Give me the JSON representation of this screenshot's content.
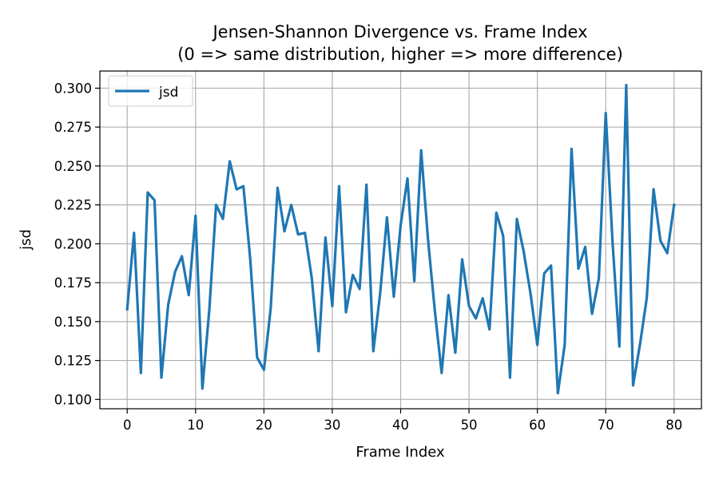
{
  "chart_data": {
    "type": "line",
    "title": "Jensen-Shannon Divergence vs. Frame Index",
    "subtitle": "(0 => same distribution, higher => more difference)",
    "xlabel": "Frame Index",
    "ylabel": "jsd",
    "xlim": [
      -4,
      84
    ],
    "ylim": [
      0.094,
      0.311
    ],
    "xticks": [
      0,
      10,
      20,
      30,
      40,
      50,
      60,
      70,
      80
    ],
    "yticks": [
      0.1,
      0.125,
      0.15,
      0.175,
      0.2,
      0.225,
      0.25,
      0.275,
      0.3
    ],
    "ytick_labels": [
      "0.100",
      "0.125",
      "0.150",
      "0.175",
      "0.200",
      "0.225",
      "0.250",
      "0.275",
      "0.300"
    ],
    "grid": true,
    "legend_position": "top-left",
    "series": [
      {
        "name": "jsd",
        "color": "#1f77b4",
        "x": [
          0,
          1,
          2,
          3,
          4,
          5,
          6,
          7,
          8,
          9,
          10,
          11,
          12,
          13,
          14,
          15,
          16,
          17,
          18,
          19,
          20,
          21,
          22,
          23,
          24,
          25,
          26,
          27,
          28,
          29,
          30,
          31,
          32,
          33,
          34,
          35,
          36,
          37,
          38,
          39,
          40,
          41,
          42,
          43,
          44,
          45,
          46,
          47,
          48,
          49,
          50,
          51,
          52,
          53,
          54,
          55,
          56,
          57,
          58,
          59,
          60,
          61,
          62,
          63,
          64,
          65,
          66,
          67,
          68,
          69,
          70,
          71,
          72,
          73,
          74,
          75,
          76,
          77,
          78,
          79,
          80
        ],
        "values": [
          0.158,
          0.207,
          0.117,
          0.233,
          0.228,
          0.114,
          0.161,
          0.182,
          0.192,
          0.167,
          0.218,
          0.107,
          0.157,
          0.225,
          0.216,
          0.253,
          0.235,
          0.237,
          0.19,
          0.127,
          0.119,
          0.159,
          0.236,
          0.208,
          0.225,
          0.206,
          0.207,
          0.178,
          0.131,
          0.204,
          0.16,
          0.237,
          0.156,
          0.18,
          0.171,
          0.238,
          0.131,
          0.168,
          0.217,
          0.166,
          0.212,
          0.242,
          0.176,
          0.26,
          0.203,
          0.157,
          0.117,
          0.167,
          0.13,
          0.19,
          0.16,
          0.152,
          0.165,
          0.145,
          0.22,
          0.205,
          0.114,
          0.216,
          0.195,
          0.168,
          0.135,
          0.181,
          0.186,
          0.104,
          0.135,
          0.261,
          0.184,
          0.198,
          0.155,
          0.178,
          0.284,
          0.201,
          0.134,
          0.302,
          0.109,
          0.135,
          0.165,
          0.235,
          0.202,
          0.194,
          0.225
        ]
      }
    ]
  }
}
